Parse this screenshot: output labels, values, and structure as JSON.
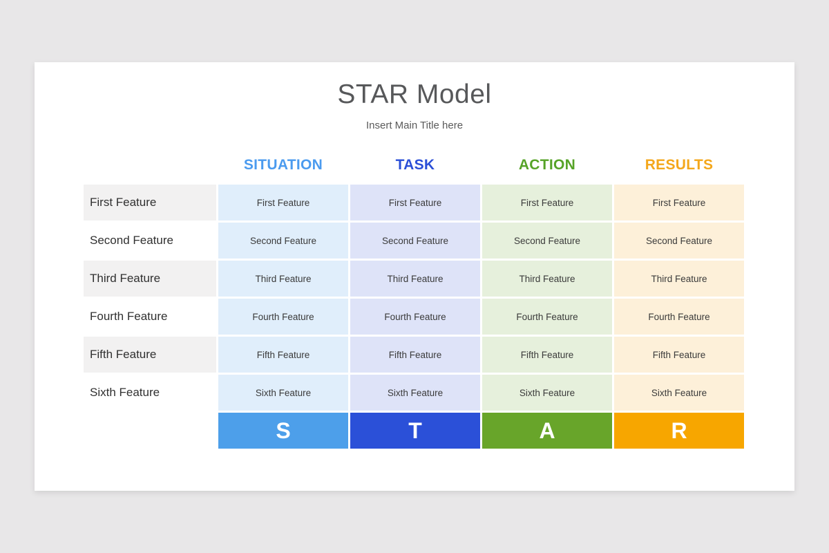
{
  "header": {
    "title": "STAR Model",
    "subtitle": "Insert Main Title here"
  },
  "colors": {
    "page_background": "#e8e7e8",
    "card_background": "#ffffff",
    "row_label_alt": "#f2f1f1",
    "title_text": "#57585a",
    "situation": {
      "header_text": "#4b9bef",
      "cell_bg": "#e0eefb",
      "letter_bg": "#4d9fea"
    },
    "task": {
      "header_text": "#2b4fd7",
      "cell_bg": "#dee3f8",
      "letter_bg": "#2b50d8"
    },
    "action": {
      "header_text": "#56a327",
      "cell_bg": "#e6f0dc",
      "letter_bg": "#68a52a"
    },
    "results": {
      "header_text": "#f4a71b",
      "cell_bg": "#fdf0d9",
      "letter_bg": "#f7a600"
    }
  },
  "table": {
    "row_labels": [
      "First Feature",
      "Second Feature",
      "Third Feature",
      "Fourth Feature",
      "Fifth Feature",
      "Sixth Feature"
    ],
    "columns": [
      {
        "id": "situation",
        "header": "SITUATION",
        "letter": "S",
        "cells": [
          "First Feature",
          "Second Feature",
          "Third Feature",
          "Fourth Feature",
          "Fifth Feature",
          "Sixth Feature"
        ]
      },
      {
        "id": "task",
        "header": "TASK",
        "letter": "T",
        "cells": [
          "First Feature",
          "Second Feature",
          "Third Feature",
          "Fourth Feature",
          "Fifth Feature",
          "Sixth Feature"
        ]
      },
      {
        "id": "action",
        "header": "ACTION",
        "letter": "A",
        "cells": [
          "First Feature",
          "Second Feature",
          "Third Feature",
          "Fourth Feature",
          "Fifth Feature",
          "Sixth Feature"
        ]
      },
      {
        "id": "results",
        "header": "RESULTS",
        "letter": "R",
        "cells": [
          "First Feature",
          "Second Feature",
          "Third Feature",
          "Fourth Feature",
          "Fifth Feature",
          "Sixth Feature"
        ]
      }
    ]
  }
}
